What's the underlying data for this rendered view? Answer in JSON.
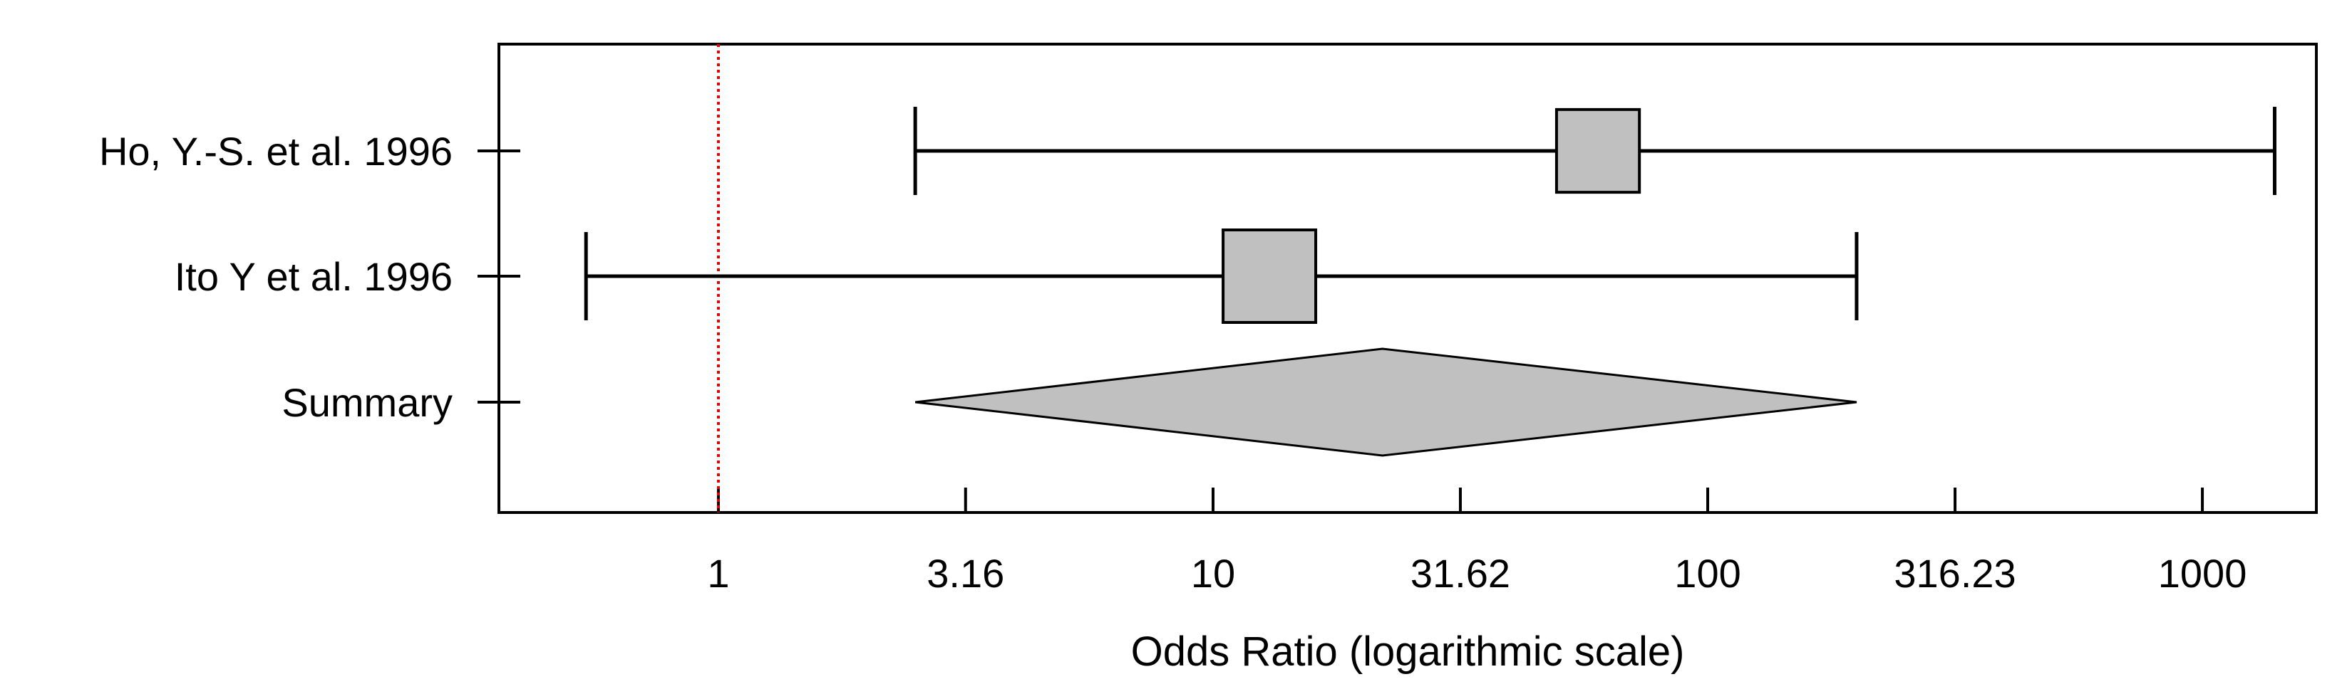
{
  "chart_data": {
    "type": "forest",
    "xlabel": "Odds Ratio (logarithmic scale)",
    "x_scale": "log10",
    "xlim": [
      0.36,
      1700
    ],
    "ticks": [
      {
        "value": 1,
        "label": "1"
      },
      {
        "value": 3.16,
        "label": "3.16"
      },
      {
        "value": 10,
        "label": "10"
      },
      {
        "value": 31.62,
        "label": "31.62"
      },
      {
        "value": 100,
        "label": "100"
      },
      {
        "value": 316.23,
        "label": "316.23"
      },
      {
        "value": 1000,
        "label": "1000"
      }
    ],
    "reference_line": 1,
    "reference_color": "#e00000",
    "marker_color": "#c0c0c0",
    "studies": [
      {
        "label": "Ho, Y.-S. et al. 1996",
        "or": 60,
        "ci_low": 2.5,
        "ci_high": 1400,
        "weight": 0.8
      },
      {
        "label": "Ito Y et al. 1996",
        "or": 13,
        "ci_low": 0.54,
        "ci_high": 200,
        "weight": 1.0
      }
    ],
    "summary": {
      "label": "Summary",
      "or": 22,
      "ci_low": 2.5,
      "ci_high": 200
    },
    "grid": false,
    "legend": "none"
  }
}
